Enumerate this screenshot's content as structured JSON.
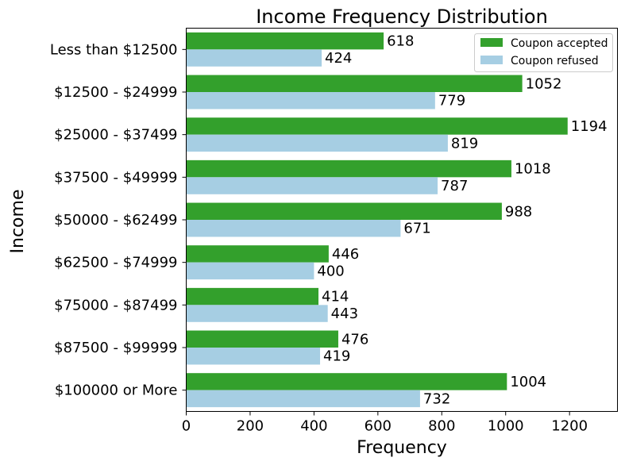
{
  "chart_data": {
    "type": "bar",
    "orientation": "horizontal",
    "title": "Income Frequency Distribution",
    "xlabel": "Frequency",
    "ylabel": "Income",
    "xlim": [
      0,
      1350
    ],
    "xticks": [
      0,
      200,
      400,
      600,
      800,
      1000,
      1200
    ],
    "categories": [
      "Less than $12500",
      "$12500 - $24999",
      "$25000 - $37499",
      "$37500 - $49999",
      "$50000 - $62499",
      "$62500 - $74999",
      "$75000 - $87499",
      "$87500 - $99999",
      "$100000 or More"
    ],
    "series": [
      {
        "name": "Coupon accepted",
        "color": "#33a02c",
        "values": [
          618,
          1052,
          1194,
          1018,
          988,
          446,
          414,
          476,
          1004
        ]
      },
      {
        "name": "Coupon refused",
        "color": "#a6cee3",
        "values": [
          424,
          779,
          819,
          787,
          671,
          400,
          443,
          419,
          732
        ]
      }
    ],
    "legend_position": "top-right",
    "grid": false
  }
}
